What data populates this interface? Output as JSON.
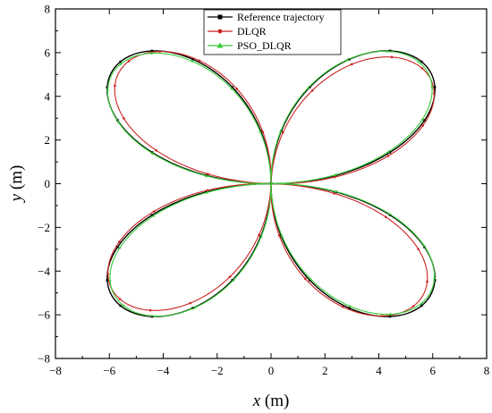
{
  "chart_data": {
    "type": "line",
    "title": "",
    "xlabel": {
      "var": "x",
      "unit": " (m)"
    },
    "ylabel": {
      "var": "y",
      "unit": " (m)"
    },
    "xlim": [
      -8,
      8
    ],
    "ylim": [
      -8,
      8
    ],
    "xticks": [
      -8,
      -6,
      -4,
      -2,
      0,
      2,
      4,
      6,
      8
    ],
    "yticks": [
      -8,
      -6,
      -4,
      -2,
      0,
      2,
      4,
      6,
      8
    ],
    "xtick_labels": [
      "−8",
      "−6",
      "−4",
      "−2",
      "0",
      "2",
      "4",
      "6",
      "8"
    ],
    "ytick_labels": [
      "−8",
      "−6",
      "−4",
      "−2",
      "0",
      "2",
      "4",
      "6",
      "8"
    ],
    "grid": false,
    "legend_position": "top-center",
    "curve": {
      "shape": "four-petal rose, petals along the diagonals",
      "petal_tip_radius": 7.9,
      "max_extent": 6.8
    },
    "series": [
      {
        "name": "Reference trajectory",
        "color": "#000000",
        "marker": "square",
        "radial_scale": 1.0,
        "phase": 0.0
      },
      {
        "name": "DLQR",
        "color": "#cc2222",
        "marker": "circle",
        "radial_scale": 0.975,
        "phase": -0.03
      },
      {
        "name": "PSO_DLQR",
        "color": "#33cc33",
        "marker": "triangle",
        "radial_scale": 0.99,
        "phase": 0.01
      }
    ]
  }
}
